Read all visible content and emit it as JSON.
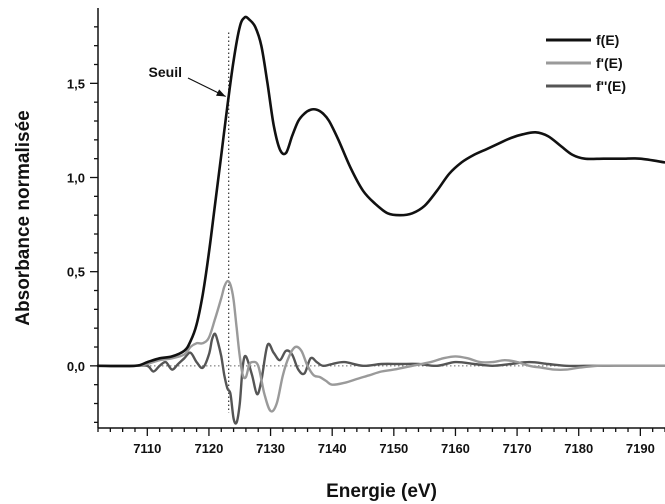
{
  "chart_data": {
    "type": "line",
    "title": "",
    "xlabel": "Energie (eV)",
    "ylabel": "Absorbance normalisée",
    "xlim": [
      7102,
      7194
    ],
    "ylim": [
      -0.33,
      1.9
    ],
    "x_ticks": [
      7110,
      7120,
      7130,
      7140,
      7150,
      7160,
      7170,
      7180,
      7190
    ],
    "x_tick_labels": [
      "7110",
      "7120",
      "7130",
      "7140",
      "7150",
      "7160",
      "7170",
      "7180",
      "7190"
    ],
    "y_ticks": [
      0.0,
      0.5,
      1.0,
      1.5
    ],
    "y_tick_labels": [
      "0,0",
      "0,5",
      "1,0",
      "1,5"
    ],
    "grid": false,
    "legend_position": "top-right",
    "reference_lines": {
      "threshold_x": 7123.2,
      "zero_y": 0.0
    },
    "annotation": {
      "text": "Seuil",
      "x": 7123.2,
      "y": 1.43
    },
    "series": [
      {
        "name": "f(E)",
        "color": "#111111",
        "x": [
          7102,
          7108,
          7110,
          7112,
          7114,
          7116,
          7117,
          7118,
          7119,
          7120,
          7121,
          7122,
          7123,
          7124,
          7125,
          7125.8,
          7126.5,
          7127.5,
          7128.5,
          7129.5,
          7130.5,
          7131.5,
          7132.5,
          7133.5,
          7134.5,
          7135.5,
          7136.5,
          7137.5,
          7138.5,
          7139.5,
          7141,
          7143,
          7145,
          7147,
          7149,
          7151,
          7153,
          7155,
          7157,
          7159,
          7161,
          7163,
          7165,
          7167,
          7169,
          7171,
          7173,
          7175,
          7177,
          7179,
          7181,
          7184,
          7187,
          7190,
          7194
        ],
        "y": [
          0.0,
          0.0,
          0.02,
          0.04,
          0.05,
          0.08,
          0.13,
          0.22,
          0.38,
          0.6,
          0.86,
          1.12,
          1.38,
          1.62,
          1.8,
          1.85,
          1.84,
          1.8,
          1.7,
          1.5,
          1.28,
          1.15,
          1.13,
          1.22,
          1.3,
          1.34,
          1.36,
          1.36,
          1.34,
          1.3,
          1.2,
          1.05,
          0.93,
          0.86,
          0.81,
          0.8,
          0.81,
          0.85,
          0.93,
          1.02,
          1.08,
          1.12,
          1.15,
          1.18,
          1.21,
          1.23,
          1.24,
          1.22,
          1.17,
          1.12,
          1.1,
          1.1,
          1.1,
          1.1,
          1.08
        ]
      },
      {
        "name": "f'(E)",
        "color": "#9a9a9a",
        "x": [
          7102,
          7108,
          7110,
          7112,
          7114,
          7116,
          7117,
          7118,
          7119,
          7120,
          7121,
          7122,
          7122.5,
          7123,
          7123.5,
          7124,
          7124.5,
          7125,
          7125.5,
          7126,
          7126.5,
          7127,
          7128,
          7129,
          7130,
          7131,
          7132,
          7133,
          7134,
          7135,
          7136,
          7137,
          7138,
          7139,
          7140,
          7142,
          7144,
          7146,
          7148,
          7150,
          7153,
          7156,
          7158,
          7160,
          7162,
          7164,
          7166,
          7168,
          7170,
          7172,
          7174,
          7176,
          7178,
          7180,
          7183,
          7186,
          7190,
          7194
        ],
        "y": [
          0.0,
          0.0,
          0.01,
          0.03,
          0.04,
          0.06,
          0.1,
          0.12,
          0.12,
          0.15,
          0.25,
          0.36,
          0.42,
          0.45,
          0.43,
          0.35,
          0.2,
          0.05,
          -0.05,
          -0.06,
          0.0,
          0.02,
          0.0,
          -0.15,
          -0.24,
          -0.2,
          -0.05,
          0.05,
          0.1,
          0.08,
          0.0,
          -0.05,
          -0.06,
          -0.08,
          -0.1,
          -0.09,
          -0.07,
          -0.05,
          -0.03,
          -0.02,
          0.0,
          0.02,
          0.04,
          0.05,
          0.04,
          0.02,
          0.02,
          0.03,
          0.02,
          0.0,
          -0.01,
          -0.02,
          -0.02,
          -0.01,
          0.0,
          0.0,
          0.0,
          0.0
        ]
      },
      {
        "name": "f''(E)",
        "color": "#555555",
        "x": [
          7102,
          7108,
          7110,
          7111,
          7112,
          7113,
          7114,
          7115,
          7116,
          7117,
          7118,
          7119,
          7120,
          7120.5,
          7121,
          7121.5,
          7122,
          7122.5,
          7123,
          7123.5,
          7124,
          7124.5,
          7125,
          7125.5,
          7126,
          7127,
          7127.8,
          7128.5,
          7129.5,
          7130.5,
          7131.5,
          7132.5,
          7133.5,
          7134.5,
          7135.5,
          7136.5,
          7137.5,
          7138.5,
          7140,
          7142,
          7145,
          7148,
          7151,
          7154,
          7157,
          7160,
          7163,
          7166,
          7169,
          7172,
          7175,
          7178,
          7181,
          7184,
          7188,
          7194
        ],
        "y": [
          0.0,
          0.0,
          0.0,
          -0.03,
          0.0,
          0.02,
          -0.02,
          0.01,
          0.04,
          0.07,
          0.02,
          -0.01,
          0.06,
          0.14,
          0.17,
          0.12,
          0.05,
          -0.05,
          -0.12,
          -0.15,
          -0.28,
          -0.3,
          -0.2,
          0.0,
          0.05,
          -0.05,
          -0.15,
          -0.08,
          0.11,
          0.07,
          0.03,
          0.08,
          0.06,
          -0.02,
          -0.04,
          0.04,
          0.02,
          0.0,
          0.01,
          0.02,
          0.0,
          0.01,
          0.01,
          0.01,
          0.0,
          0.02,
          0.01,
          0.0,
          0.01,
          0.02,
          0.01,
          0.0,
          0.0,
          0.0,
          0.0,
          0.0
        ]
      }
    ]
  }
}
